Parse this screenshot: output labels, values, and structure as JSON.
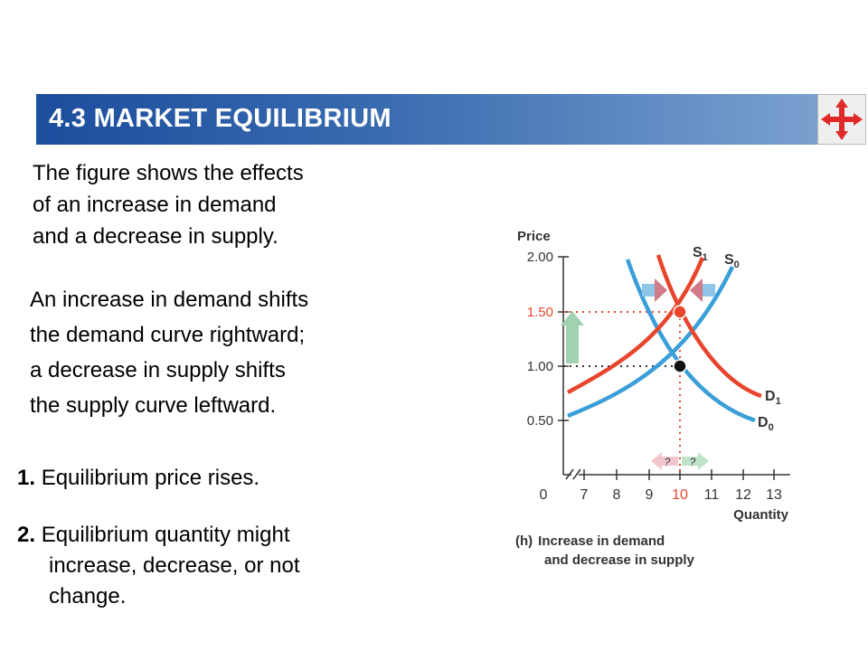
{
  "title": "4.3  MARKET EQUILIBRIUM",
  "nav_icon": "four-way-arrow-icon",
  "intro": [
    "The figure shows the effects",
    "of an increase in demand",
    "and a decrease in supply."
  ],
  "explanation": [
    "An increase in demand shifts",
    "the demand curve rightward;",
    "a decrease in supply shifts",
    "the supply curve leftward."
  ],
  "points": [
    {
      "number": "1.",
      "lines": [
        "Equilibrium price rises."
      ]
    },
    {
      "number": "2.",
      "lines": [
        "Equilibrium quantity might",
        "increase, decrease, or not",
        "change."
      ]
    }
  ],
  "figure": {
    "y_axis_label": "Price",
    "x_axis_label": "Quantity",
    "y_ticks": [
      {
        "value": 2.0,
        "label": "2.00"
      },
      {
        "value": 1.5,
        "label": "1.50"
      },
      {
        "value": 1.0,
        "label": "1.00"
      },
      {
        "value": 0.5,
        "label": "0.50"
      }
    ],
    "x_origin_label": "0",
    "x_ticks": [
      7,
      8,
      9,
      10,
      11,
      12,
      13
    ],
    "curve_labels": {
      "s1": "S",
      "s1_sub": "1",
      "s0": "S",
      "s0_sub": "0",
      "d1": "D",
      "d1_sub": "1",
      "d0": "D",
      "d0_sub": "0"
    },
    "question_marks": [
      "?",
      "?"
    ],
    "equilibria": [
      {
        "name": "initial",
        "quantity": 10,
        "price": 1.0
      },
      {
        "name": "new",
        "quantity": 10,
        "price": 1.5
      }
    ],
    "caption_prefix": "(h)",
    "caption": [
      "Increase in demand",
      "and decrease in supply"
    ],
    "colors": {
      "supply_demand_blue": "#3a9fd8",
      "shifted_red": "#e8452c",
      "highlight_red": "#e8452c",
      "axis": "#333333",
      "up_arrow": "#9fd2b0",
      "shift_arrow_pink": "#d07a8a"
    }
  }
}
